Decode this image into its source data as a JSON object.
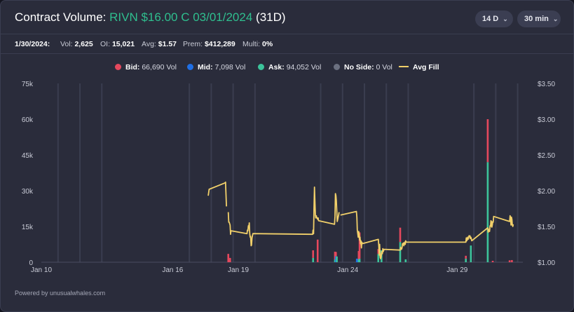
{
  "header": {
    "title_prefix": "Contract Volume:",
    "contract": "RIVN $16.00 C 03/01/2024",
    "dte": "(31D)",
    "range_label": "14 D",
    "interval_label": "30 min"
  },
  "stats": {
    "date": "1/30/2024:",
    "vol_label": "Vol:",
    "vol": "2,625",
    "oi_label": "OI:",
    "oi": "15,021",
    "avg_label": "Avg:",
    "avg": "$1.57",
    "prem_label": "Prem:",
    "prem": "$412,289",
    "multi_label": "Multi:",
    "multi": "0%"
  },
  "legend": {
    "bid_label": "Bid:",
    "bid_value": "66,690 Vol",
    "mid_label": "Mid:",
    "mid_value": "7,098 Vol",
    "ask_label": "Ask:",
    "ask_value": "94,052 Vol",
    "noside_label": "No Side:",
    "noside_value": "0 Vol",
    "avg_label": "Avg Fill"
  },
  "footer": {
    "text": "Powered by unusualwhales.com"
  },
  "colors": {
    "bid": "#e5485d",
    "mid": "#1f6fe5",
    "ask": "#3cc49b",
    "noside": "#6b7080",
    "avg_fill": "#f1d06a",
    "grid": "#3a3d4f",
    "axis_text": "#c9cbd6"
  },
  "chart_data": {
    "type": "bar",
    "x_axis": {
      "type": "date",
      "range": [
        "2024-01-10",
        "2024-02-01"
      ],
      "ticks": [
        {
          "x": "2024-01-10",
          "label": "Jan 10"
        },
        {
          "x": "2024-01-16",
          "label": "Jan 16"
        },
        {
          "x": "2024-01-19",
          "label": "Jan 19"
        },
        {
          "x": "2024-01-24",
          "label": "Jan 24"
        },
        {
          "x": "2024-01-29",
          "label": "Jan 29"
        }
      ],
      "session_gaps": [
        "2024-01-10",
        "2024-01-11",
        "2024-01-12",
        "2024-01-16",
        "2024-01-17",
        "2024-01-18",
        "2024-01-19",
        "2024-01-22",
        "2024-01-23",
        "2024-01-24",
        "2024-01-25",
        "2024-01-26",
        "2024-01-29",
        "2024-01-30",
        "2024-01-31"
      ]
    },
    "y_left": {
      "label": "",
      "range": [
        0,
        75000
      ],
      "ticks": [
        {
          "v": 0,
          "label": "0"
        },
        {
          "v": 15000,
          "label": "15k"
        },
        {
          "v": 30000,
          "label": "30k"
        },
        {
          "v": 45000,
          "label": "45k"
        },
        {
          "v": 60000,
          "label": "60k"
        },
        {
          "v": 75000,
          "label": "75k"
        }
      ]
    },
    "y_right": {
      "label": "",
      "range": [
        1.0,
        3.5
      ],
      "ticks": [
        {
          "v": 1.0,
          "label": "$1.00"
        },
        {
          "v": 1.5,
          "label": "$1.50"
        },
        {
          "v": 2.0,
          "label": "$2.00"
        },
        {
          "v": 2.5,
          "label": "$2.50"
        },
        {
          "v": 3.0,
          "label": "$3.00"
        },
        {
          "v": 3.5,
          "label": "$3.50"
        }
      ]
    },
    "bars": [
      {
        "x": "2024-01-18 13:00",
        "bid": 3500,
        "ask": 0,
        "mid": 0
      },
      {
        "x": "2024-01-18 15:00",
        "bid": 1800,
        "ask": 0,
        "mid": 0
      },
      {
        "x": "2024-01-22 10:00",
        "bid": 3200,
        "ask": 1800,
        "mid": 0
      },
      {
        "x": "2024-01-22 15:00",
        "bid": 9500,
        "ask": 0,
        "mid": 0
      },
      {
        "x": "2024-01-23 10:00",
        "bid": 3200,
        "ask": 1200,
        "mid": 0
      },
      {
        "x": "2024-01-23 11:00",
        "bid": 1800,
        "ask": 0,
        "mid": 2500
      },
      {
        "x": "2024-01-23 12:00",
        "bid": 0,
        "ask": 2400,
        "mid": 0
      },
      {
        "x": "2024-01-24 10:00",
        "bid": 0,
        "ask": 0,
        "mid": 1500
      },
      {
        "x": "2024-01-24 12:00",
        "bid": 3500,
        "ask": 1200,
        "mid": 0
      },
      {
        "x": "2024-01-24 13:00",
        "bid": 11000,
        "ask": 1500,
        "mid": 0
      },
      {
        "x": "2024-01-25 09:30",
        "bid": 2000,
        "ask": 3500,
        "mid": 0
      },
      {
        "x": "2024-01-25 13:00",
        "bid": 0,
        "ask": 5000,
        "mid": 0
      },
      {
        "x": "2024-01-26 09:30",
        "bid": 6000,
        "ask": 8500,
        "mid": 0
      },
      {
        "x": "2024-01-26 15:30",
        "bid": 0,
        "ask": 1200,
        "mid": 0
      },
      {
        "x": "2024-01-29 09:30",
        "bid": 1200,
        "ask": 1500,
        "mid": 0
      },
      {
        "x": "2024-01-29 15:00",
        "bid": 0,
        "ask": 7000,
        "mid": 0
      },
      {
        "x": "2024-01-30 09:30",
        "bid": 18000,
        "ask": 42000,
        "mid": 0
      },
      {
        "x": "2024-01-30 15:00",
        "bid": 600,
        "ask": 0,
        "mid": 0
      },
      {
        "x": "2024-01-31 09:30",
        "bid": 800,
        "ask": 0,
        "mid": 0
      },
      {
        "x": "2024-01-31 12:00",
        "bid": 900,
        "ask": 0,
        "mid": 0
      }
    ],
    "avg_fill": [
      [
        {
          "x": "2024-01-17 15:00",
          "y": 1.93
        },
        {
          "x": "2024-01-17 16:00",
          "y": 2.02
        },
        {
          "x": "2024-01-18 09:30",
          "y": 2.11
        },
        {
          "x": "2024-01-18 10:00",
          "y": 2.12
        },
        {
          "x": "2024-01-18 11:00",
          "y": 1.78
        }
      ],
      [
        {
          "x": "2024-01-18 13:00",
          "y": 1.7
        },
        {
          "x": "2024-01-18 13:30",
          "y": 1.56
        },
        {
          "x": "2024-01-18 14:00",
          "y": 1.56
        },
        {
          "x": "2024-01-18 15:00",
          "y": 1.52
        },
        {
          "x": "2024-01-18 15:30",
          "y": 1.39
        },
        {
          "x": "2024-01-18 16:00",
          "y": 1.44
        },
        {
          "x": "2024-01-19 09:30",
          "y": 1.4
        },
        {
          "x": "2024-01-19 10:00",
          "y": 1.45
        },
        {
          "x": "2024-01-19 10:30",
          "y": 1.44
        },
        {
          "x": "2024-01-19 11:00",
          "y": 1.51
        },
        {
          "x": "2024-01-19 11:30",
          "y": 1.48
        },
        {
          "x": "2024-01-19 12:00",
          "y": 1.55
        },
        {
          "x": "2024-01-19 12:30",
          "y": 1.4
        },
        {
          "x": "2024-01-19 13:00",
          "y": 1.35
        },
        {
          "x": "2024-01-19 13:30",
          "y": 1.36
        },
        {
          "x": "2024-01-19 14:00",
          "y": 1.23
        },
        {
          "x": "2024-01-19 14:30",
          "y": 1.24
        },
        {
          "x": "2024-01-19 15:00",
          "y": 1.34
        },
        {
          "x": "2024-01-19 15:30",
          "y": 1.37
        },
        {
          "x": "2024-01-19 16:00",
          "y": 1.4
        },
        {
          "x": "2024-01-22 09:30",
          "y": 1.39
        },
        {
          "x": "2024-01-22 10:00",
          "y": 1.45
        },
        {
          "x": "2024-01-22 10:30",
          "y": 1.4
        },
        {
          "x": "2024-01-22 11:00",
          "y": 1.74
        },
        {
          "x": "2024-01-22 11:30",
          "y": 2.05
        },
        {
          "x": "2024-01-22 12:00",
          "y": 1.86
        },
        {
          "x": "2024-01-22 12:30",
          "y": 1.66
        },
        {
          "x": "2024-01-22 13:00",
          "y": 1.62
        },
        {
          "x": "2024-01-22 13:30",
          "y": 1.65
        },
        {
          "x": "2024-01-22 14:00",
          "y": 1.62
        },
        {
          "x": "2024-01-22 14:30",
          "y": 1.62
        },
        {
          "x": "2024-01-22 15:00",
          "y": 1.6
        },
        {
          "x": "2024-01-22 15:30",
          "y": 1.62
        },
        {
          "x": "2024-01-22 16:00",
          "y": 1.58
        },
        {
          "x": "2024-01-23 09:30",
          "y": 1.53
        },
        {
          "x": "2024-01-23 10:00",
          "y": 1.64
        },
        {
          "x": "2024-01-23 10:30",
          "y": 1.96
        },
        {
          "x": "2024-01-23 11:00",
          "y": 1.93
        },
        {
          "x": "2024-01-23 11:30",
          "y": 1.86
        },
        {
          "x": "2024-01-23 12:00",
          "y": 1.7
        },
        {
          "x": "2024-01-23 12:30",
          "y": 1.57
        },
        {
          "x": "2024-01-23 13:00",
          "y": 1.6
        },
        {
          "x": "2024-01-23 13:30",
          "y": 1.63
        },
        {
          "x": "2024-01-23 14:00",
          "y": 1.66
        },
        {
          "x": "2024-01-23 14:30",
          "y": 1.7
        }
      ],
      [
        {
          "x": "2024-01-23 16:00",
          "y": 1.66
        },
        {
          "x": "2024-01-24 09:30",
          "y": 1.71
        },
        {
          "x": "2024-01-24 10:00",
          "y": 1.63
        },
        {
          "x": "2024-01-24 10:30",
          "y": 1.45
        },
        {
          "x": "2024-01-24 11:00",
          "y": 1.4
        },
        {
          "x": "2024-01-24 11:30",
          "y": 1.35
        },
        {
          "x": "2024-01-24 12:00",
          "y": 1.43
        },
        {
          "x": "2024-01-24 12:30",
          "y": 1.39
        },
        {
          "x": "2024-01-24 13:00",
          "y": 1.31
        },
        {
          "x": "2024-01-24 13:30",
          "y": 1.35
        },
        {
          "x": "2024-01-24 14:00",
          "y": 1.26
        },
        {
          "x": "2024-01-24 14:30",
          "y": 1.3
        },
        {
          "x": "2024-01-24 15:00",
          "y": 1.2
        },
        {
          "x": "2024-01-24 15:30",
          "y": 1.28
        },
        {
          "x": "2024-01-24 16:00",
          "y": 1.26
        },
        {
          "x": "2024-01-25 09:30",
          "y": 1.32
        },
        {
          "x": "2024-01-25 10:00",
          "y": 1.24
        },
        {
          "x": "2024-01-25 10:30",
          "y": 1.1
        },
        {
          "x": "2024-01-25 11:00",
          "y": 1.25
        },
        {
          "x": "2024-01-25 11:30",
          "y": 1.07
        },
        {
          "x": "2024-01-25 12:00",
          "y": 1.05
        },
        {
          "x": "2024-01-25 12:30",
          "y": 1.07
        },
        {
          "x": "2024-01-25 13:00",
          "y": 1.12
        },
        {
          "x": "2024-01-25 13:30",
          "y": 1.15
        },
        {
          "x": "2024-01-25 14:00",
          "y": 1.12
        },
        {
          "x": "2024-01-25 14:30",
          "y": 1.19
        },
        {
          "x": "2024-01-25 15:00",
          "y": 1.15
        },
        {
          "x": "2024-01-25 15:30",
          "y": 1.17
        },
        {
          "x": "2024-01-25 16:00",
          "y": 1.18
        },
        {
          "x": "2024-01-26 09:30",
          "y": 1.17
        },
        {
          "x": "2024-01-26 10:00",
          "y": 1.21
        },
        {
          "x": "2024-01-26 10:30",
          "y": 1.19
        },
        {
          "x": "2024-01-26 11:00",
          "y": 1.18
        },
        {
          "x": "2024-01-26 11:30",
          "y": 1.2
        },
        {
          "x": "2024-01-26 12:00",
          "y": 1.26
        },
        {
          "x": "2024-01-26 12:30",
          "y": 1.25
        },
        {
          "x": "2024-01-26 13:00",
          "y": 1.27
        },
        {
          "x": "2024-01-26 13:30",
          "y": 1.23
        },
        {
          "x": "2024-01-26 14:00",
          "y": 1.26
        },
        {
          "x": "2024-01-26 14:30",
          "y": 1.28
        },
        {
          "x": "2024-01-26 15:00",
          "y": 1.25
        },
        {
          "x": "2024-01-26 15:30",
          "y": 1.3
        },
        {
          "x": "2024-01-26 16:00",
          "y": 1.28
        },
        {
          "x": "2024-01-29 09:30",
          "y": 1.28
        },
        {
          "x": "2024-01-29 10:00",
          "y": 1.34
        },
        {
          "x": "2024-01-29 10:30",
          "y": 1.3
        },
        {
          "x": "2024-01-29 11:00",
          "y": 1.32
        },
        {
          "x": "2024-01-29 11:30",
          "y": 1.35
        },
        {
          "x": "2024-01-29 12:00",
          "y": 1.32
        },
        {
          "x": "2024-01-29 12:30",
          "y": 1.34
        },
        {
          "x": "2024-01-29 13:00",
          "y": 1.37
        },
        {
          "x": "2024-01-29 13:30",
          "y": 1.36
        },
        {
          "x": "2024-01-29 14:00",
          "y": 1.37
        },
        {
          "x": "2024-01-29 14:30",
          "y": 1.33
        },
        {
          "x": "2024-01-29 15:00",
          "y": 1.35
        },
        {
          "x": "2024-01-29 15:30",
          "y": 1.33
        },
        {
          "x": "2024-01-29 16:00",
          "y": 1.3
        },
        {
          "x": "2024-01-30 09:30",
          "y": 1.48
        },
        {
          "x": "2024-01-30 10:00",
          "y": 1.42
        },
        {
          "x": "2024-01-30 10:30",
          "y": 1.45
        },
        {
          "x": "2024-01-30 11:00",
          "y": 1.46
        },
        {
          "x": "2024-01-30 11:30",
          "y": 1.43
        },
        {
          "x": "2024-01-30 12:00",
          "y": 1.51
        },
        {
          "x": "2024-01-30 12:30",
          "y": 1.5
        },
        {
          "x": "2024-01-30 13:00",
          "y": 1.58
        },
        {
          "x": "2024-01-30 13:30",
          "y": 1.57
        },
        {
          "x": "2024-01-30 14:00",
          "y": 1.49
        },
        {
          "x": "2024-01-30 14:30",
          "y": 1.52
        },
        {
          "x": "2024-01-30 15:00",
          "y": 1.57
        },
        {
          "x": "2024-01-30 15:30",
          "y": 1.56
        },
        {
          "x": "2024-01-30 16:00",
          "y": 1.64
        },
        {
          "x": "2024-01-31 09:30",
          "y": 1.57
        },
        {
          "x": "2024-01-31 10:00",
          "y": 1.65
        },
        {
          "x": "2024-01-31 10:30",
          "y": 1.62
        },
        {
          "x": "2024-01-31 11:00",
          "y": 1.52
        },
        {
          "x": "2024-01-31 11:30",
          "y": 1.63
        },
        {
          "x": "2024-01-31 12:00",
          "y": 1.6
        },
        {
          "x": "2024-01-31 12:30",
          "y": 1.52
        },
        {
          "x": "2024-01-31 13:00",
          "y": 1.5
        },
        {
          "x": "2024-01-31 13:30",
          "y": 1.53
        }
      ]
    ],
    "grid": true,
    "legend_position": "top-center"
  }
}
